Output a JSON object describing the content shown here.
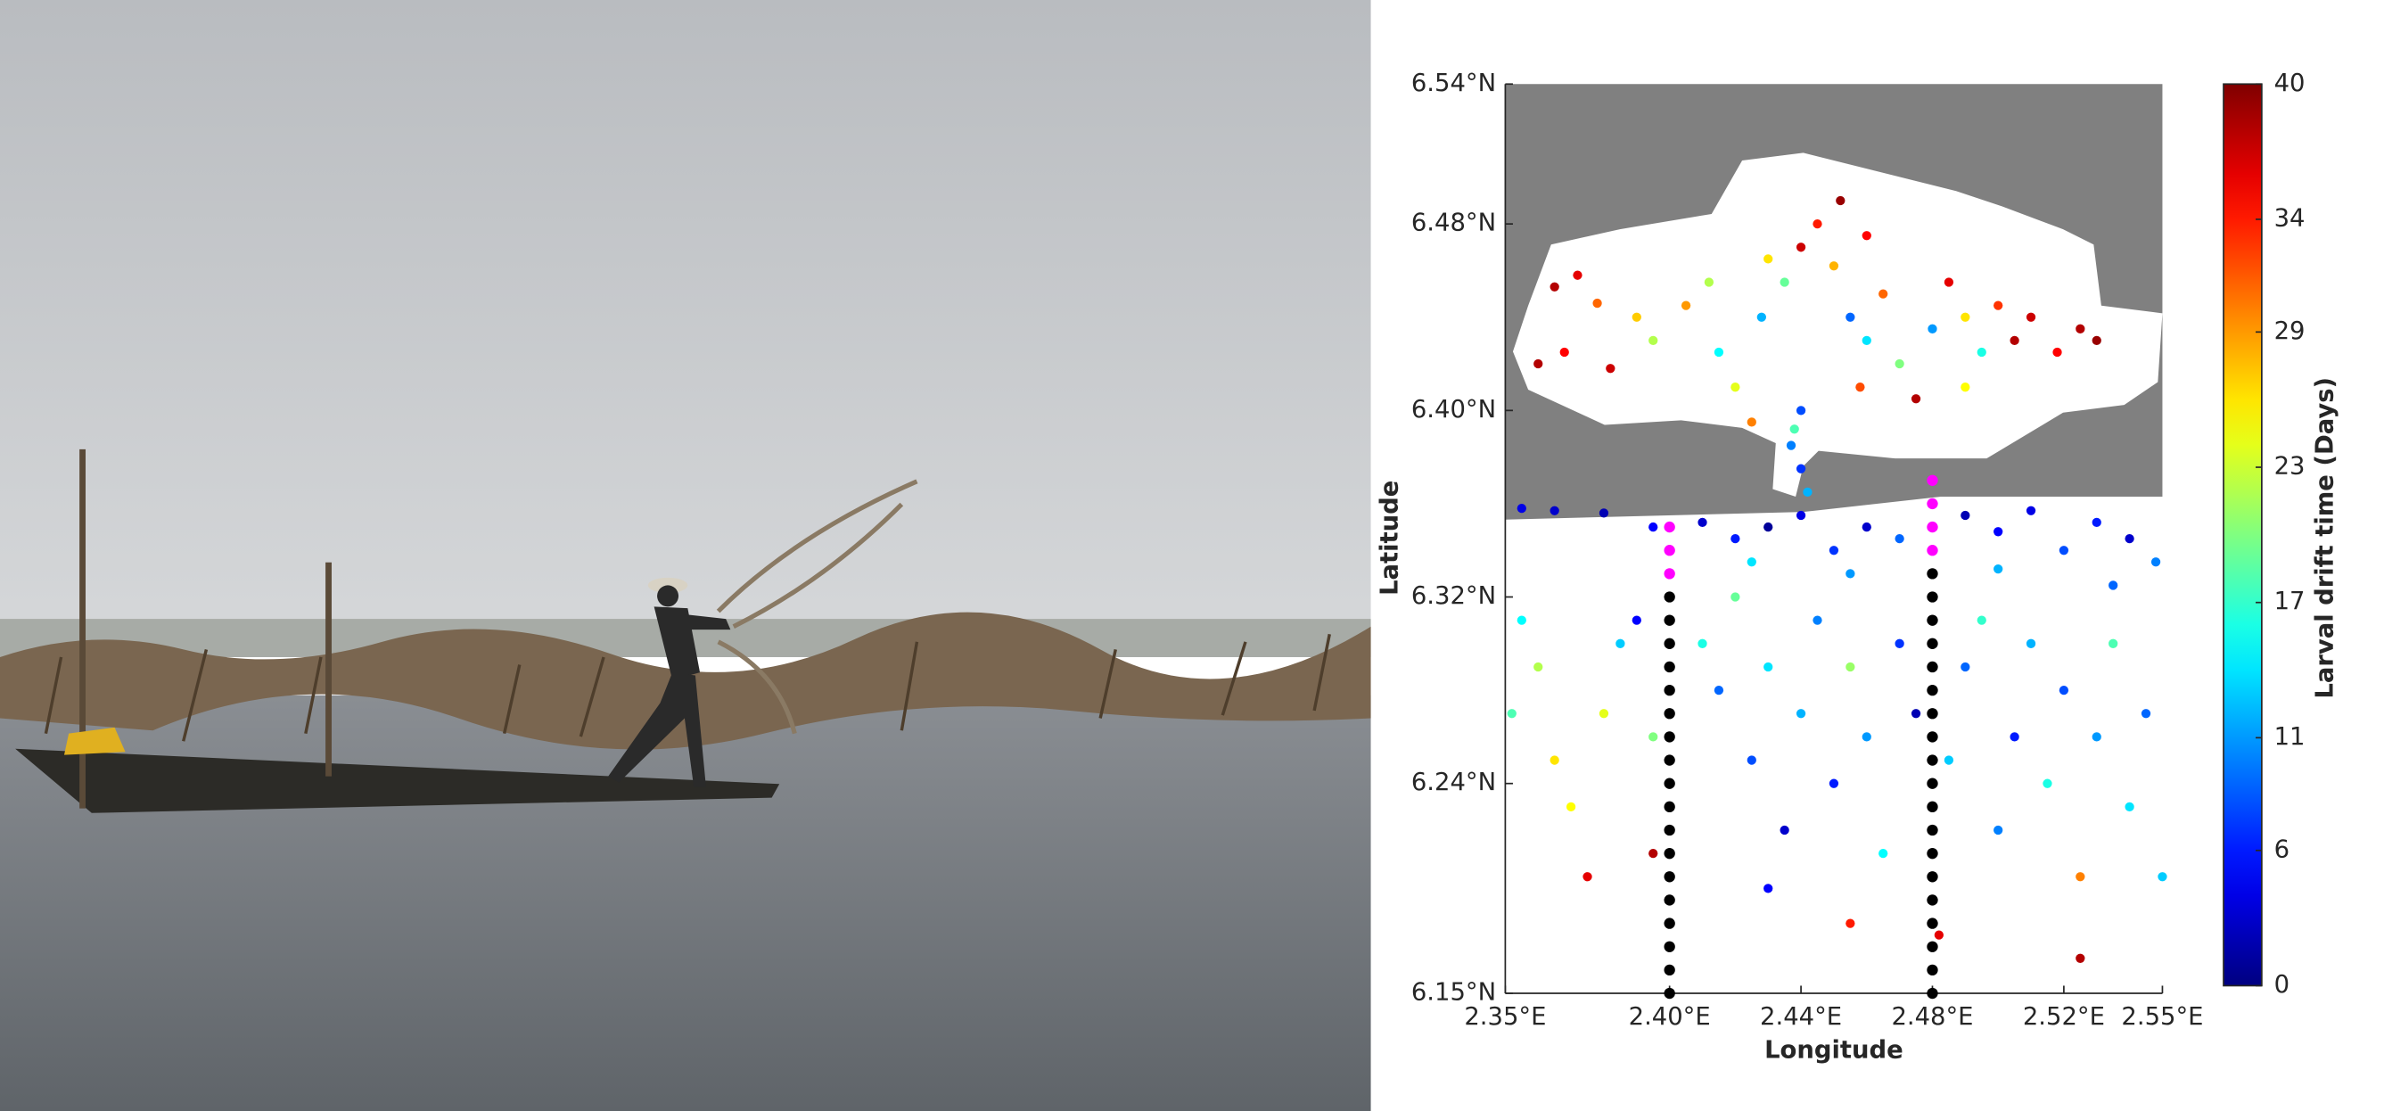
{
  "chart_data": {
    "type": "scatter",
    "xlabel": "Longitude",
    "ylabel": "Latitude",
    "xlim": [
      2.35,
      2.55
    ],
    "ylim": [
      6.15,
      6.54
    ],
    "xticks": [
      {
        "value": 2.35,
        "label": "2.35°E"
      },
      {
        "value": 2.4,
        "label": "2.40°E"
      },
      {
        "value": 2.44,
        "label": "2.44°E"
      },
      {
        "value": 2.48,
        "label": "2.48°E"
      },
      {
        "value": 2.52,
        "label": "2.52°E"
      },
      {
        "value": 2.55,
        "label": "2.55°E"
      }
    ],
    "yticks": [
      {
        "value": 6.15,
        "label": "6.15°N"
      },
      {
        "value": 6.24,
        "label": "6.24°N"
      },
      {
        "value": 6.32,
        "label": "6.32°N"
      },
      {
        "value": 6.4,
        "label": "6.40°N"
      },
      {
        "value": 6.48,
        "label": "6.48°N"
      },
      {
        "value": 6.54,
        "label": "6.54°N"
      }
    ],
    "colorbar": {
      "label": "Larval drift time (Days)",
      "colormap": "jet",
      "clim": [
        0,
        40
      ],
      "ticks": [
        0,
        6,
        11,
        17,
        23,
        29,
        34,
        40
      ]
    },
    "series": [
      {
        "colormap": "jet",
        "x": [
          2.365,
          2.372,
          2.378,
          2.39,
          2.36,
          2.368,
          2.382,
          2.395,
          2.405,
          2.415,
          2.42,
          2.428,
          2.435,
          2.44,
          2.445,
          2.45,
          2.455,
          2.46,
          2.465,
          2.47,
          2.475,
          2.48,
          2.485,
          2.49,
          2.495,
          2.5,
          2.505,
          2.51,
          2.518,
          2.525,
          2.53,
          2.452,
          2.46,
          2.43,
          2.412,
          2.425,
          2.44,
          2.458,
          2.49,
          2.437,
          2.44,
          2.442,
          2.438,
          2.355,
          2.365,
          2.38,
          2.395,
          2.41,
          2.42,
          2.43,
          2.44,
          2.45,
          2.46,
          2.47,
          2.49,
          2.5,
          2.51,
          2.52,
          2.53,
          2.54,
          2.548,
          2.425,
          2.455,
          2.5,
          2.535,
          2.355,
          2.36,
          2.352,
          2.365,
          2.37,
          2.375,
          2.38,
          2.385,
          2.39,
          2.395,
          2.41,
          2.415,
          2.42,
          2.425,
          2.43,
          2.435,
          2.44,
          2.445,
          2.45,
          2.455,
          2.46,
          2.465,
          2.47,
          2.475,
          2.485,
          2.49,
          2.495,
          2.5,
          2.505,
          2.51,
          2.515,
          2.52,
          2.525,
          2.53,
          2.535,
          2.54,
          2.545,
          2.55,
          2.482,
          2.525,
          2.455,
          2.395,
          2.43
        ],
        "y": [
          6.453,
          6.458,
          6.446,
          6.44,
          6.42,
          6.425,
          6.418,
          6.43,
          6.445,
          6.425,
          6.41,
          6.44,
          6.455,
          6.47,
          6.48,
          6.462,
          6.44,
          6.43,
          6.45,
          6.42,
          6.405,
          6.435,
          6.455,
          6.44,
          6.425,
          6.445,
          6.43,
          6.44,
          6.425,
          6.435,
          6.43,
          6.49,
          6.475,
          6.465,
          6.455,
          6.395,
          6.4,
          6.41,
          6.41,
          6.385,
          6.375,
          6.365,
          6.392,
          6.358,
          6.357,
          6.356,
          6.35,
          6.352,
          6.345,
          6.35,
          6.355,
          6.34,
          6.35,
          6.345,
          6.355,
          6.348,
          6.357,
          6.34,
          6.352,
          6.345,
          6.335,
          6.335,
          6.33,
          6.332,
          6.325,
          6.31,
          6.29,
          6.27,
          6.25,
          6.23,
          6.2,
          6.27,
          6.3,
          6.31,
          6.26,
          6.3,
          6.28,
          6.32,
          6.25,
          6.29,
          6.22,
          6.27,
          6.31,
          6.24,
          6.29,
          6.26,
          6.21,
          6.3,
          6.27,
          6.25,
          6.29,
          6.31,
          6.22,
          6.26,
          6.3,
          6.24,
          6.28,
          6.2,
          6.26,
          6.3,
          6.23,
          6.27,
          6.2,
          6.175,
          6.165,
          6.18,
          6.21,
          6.195
        ],
        "values": [
          38,
          36,
          31,
          27,
          38,
          35,
          37,
          22,
          29,
          15,
          24,
          12,
          19,
          37,
          34,
          28,
          9,
          14,
          31,
          20,
          38,
          11,
          36,
          26,
          16,
          33,
          38,
          37,
          35,
          38,
          39,
          39,
          35,
          26,
          22,
          30,
          8,
          32,
          25,
          10,
          7,
          12,
          18,
          4,
          3,
          2,
          5,
          3,
          6,
          1,
          4,
          7,
          3,
          9,
          2,
          5,
          4,
          8,
          6,
          3,
          10,
          14,
          11,
          12,
          9,
          15,
          22,
          18,
          26,
          25,
          36,
          24,
          13,
          5,
          20,
          16,
          9,
          19,
          8,
          14,
          3,
          12,
          10,
          6,
          21,
          11,
          15,
          7,
          2,
          13,
          9,
          17,
          10,
          6,
          12,
          16,
          8,
          30,
          11,
          18,
          14,
          9,
          13,
          36,
          38,
          34,
          38,
          5
        ]
      },
      {
        "color": "#000000",
        "x": [
          2.4,
          2.4,
          2.4,
          2.4,
          2.4,
          2.4,
          2.4,
          2.4,
          2.4,
          2.4,
          2.4,
          2.4,
          2.4,
          2.4,
          2.4,
          2.4,
          2.4,
          2.4
        ],
        "y": [
          6.15,
          6.16,
          6.17,
          6.18,
          6.19,
          6.2,
          6.21,
          6.22,
          6.23,
          6.24,
          6.25,
          6.26,
          6.27,
          6.28,
          6.29,
          6.3,
          6.31,
          6.32
        ]
      },
      {
        "color": "#ff00ff",
        "x": [
          2.4,
          2.4,
          2.4
        ],
        "y": [
          6.33,
          6.34,
          6.35
        ]
      },
      {
        "color": "#000000",
        "x": [
          2.48,
          2.48,
          2.48,
          2.48,
          2.48,
          2.48,
          2.48,
          2.48,
          2.48,
          2.48,
          2.48,
          2.48,
          2.48,
          2.48,
          2.48,
          2.48,
          2.48,
          2.48,
          2.48
        ],
        "y": [
          6.15,
          6.16,
          6.17,
          6.18,
          6.19,
          6.2,
          6.21,
          6.22,
          6.23,
          6.24,
          6.25,
          6.26,
          6.27,
          6.28,
          6.29,
          6.3,
          6.31,
          6.32,
          6.33
        ]
      },
      {
        "color": "#ff00ff",
        "x": [
          2.48,
          2.48,
          2.48,
          2.48
        ],
        "y": [
          6.34,
          6.35,
          6.36,
          6.37
        ]
      }
    ]
  }
}
